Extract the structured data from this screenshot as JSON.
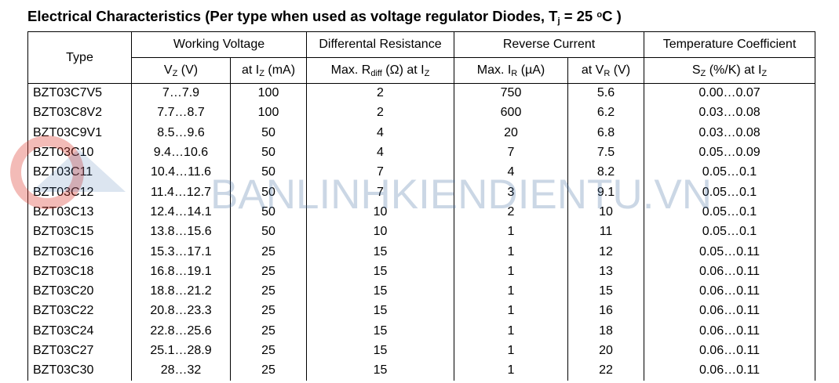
{
  "header": {
    "title": [
      "Electrical Characteristics (Per type when used as voltage regulator Diodes, T",
      {
        "sub": "j"
      },
      " = 25 ",
      {
        "sup": "o"
      },
      "C )"
    ]
  },
  "watermark": "BANLINHKIENDIENTU.VN",
  "table": {
    "groups": [
      {
        "label": "Type"
      },
      {
        "label": "Working Voltage",
        "span": 2
      },
      {
        "label": "Differental Resistance",
        "span": 1
      },
      {
        "label": "Reverse Current",
        "span": 2
      },
      {
        "label": "Temperature Coefficient",
        "span": 1
      }
    ],
    "subheaders": [
      [
        "V",
        {
          "sub": "Z"
        },
        " (V)"
      ],
      [
        "at I",
        {
          "sub": "Z"
        },
        " (mA)"
      ],
      [
        "Max. R",
        {
          "sub": "diff"
        },
        " (Ω) at I",
        {
          "sub": "Z"
        }
      ],
      [
        "Max. I",
        {
          "sub": "R"
        },
        " (µA)"
      ],
      [
        "at V",
        {
          "sub": "R"
        },
        " (V)"
      ],
      [
        "S",
        {
          "sub": "Z"
        },
        " (%/K) at I",
        {
          "sub": "Z"
        }
      ]
    ],
    "rows": [
      [
        "BZT03C7V5",
        "7…7.9",
        "100",
        "2",
        "750",
        "5.6",
        "0.00…0.07"
      ],
      [
        "BZT03C8V2",
        "7.7…8.7",
        "100",
        "2",
        "600",
        "6.2",
        "0.03…0.08"
      ],
      [
        "BZT03C9V1",
        "8.5…9.6",
        "50",
        "4",
        "20",
        "6.8",
        "0.03…0.08"
      ],
      [
        "BZT03C10",
        "9.4…10.6",
        "50",
        "4",
        "7",
        "7.5",
        "0.05…0.09"
      ],
      [
        "BZT03C11",
        "10.4…11.6",
        "50",
        "7",
        "4",
        "8.2",
        "0.05…0.1"
      ],
      [
        "BZT03C12",
        "11.4…12.7",
        "50",
        "7",
        "3",
        "9.1",
        "0.05…0.1"
      ],
      [
        "BZT03C13",
        "12.4…14.1",
        "50",
        "10",
        "2",
        "10",
        "0.05…0.1"
      ],
      [
        "BZT03C15",
        "13.8…15.6",
        "50",
        "10",
        "1",
        "11",
        "0.05…0.1"
      ],
      [
        "BZT03C16",
        "15.3…17.1",
        "25",
        "15",
        "1",
        "12",
        "0.05…0.11"
      ],
      [
        "BZT03C18",
        "16.8…19.1",
        "25",
        "15",
        "1",
        "13",
        "0.06…0.11"
      ],
      [
        "BZT03C20",
        "18.8…21.2",
        "25",
        "15",
        "1",
        "15",
        "0.06…0.11"
      ],
      [
        "BZT03C22",
        "20.8…23.3",
        "25",
        "15",
        "1",
        "16",
        "0.06…0.11"
      ],
      [
        "BZT03C24",
        "22.8…25.6",
        "25",
        "15",
        "1",
        "18",
        "0.06…0.11"
      ],
      [
        "BZT03C27",
        "25.1…28.9",
        "25",
        "15",
        "1",
        "20",
        "0.06…0.11"
      ],
      [
        "BZT03C30",
        "28…32",
        "25",
        "15",
        "1",
        "22",
        "0.06…0.11"
      ]
    ]
  }
}
